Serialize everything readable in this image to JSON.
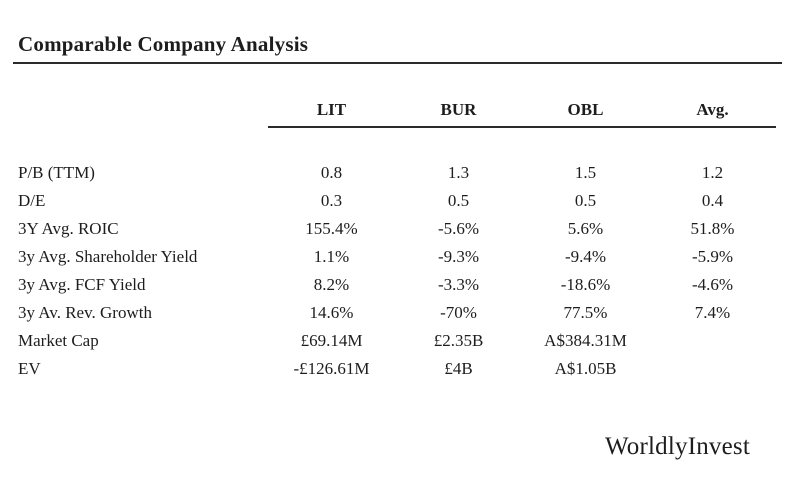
{
  "title": "Comparable Company Analysis",
  "watermark": "WorldlyInvest",
  "colors": {
    "text": "#1d1d1d",
    "rule": "#2a2a2a",
    "background": "#ffffff"
  },
  "chart_data": {
    "type": "table",
    "title": "Comparable Company Analysis",
    "columns": [
      "LIT",
      "BUR",
      "OBL",
      "Avg."
    ],
    "rows": [
      {
        "label": "P/B (TTM)",
        "values": [
          "0.8",
          "1.3",
          "1.5",
          "1.2"
        ]
      },
      {
        "label": "D/E",
        "values": [
          "0.3",
          "0.5",
          "0.5",
          "0.4"
        ]
      },
      {
        "label": "3Y Avg. ROIC",
        "values": [
          "155.4%",
          "-5.6%",
          "5.6%",
          "51.8%"
        ]
      },
      {
        "label": "3y Avg. Shareholder Yield",
        "values": [
          "1.1%",
          "-9.3%",
          "-9.4%",
          "-5.9%"
        ]
      },
      {
        "label": "3y Avg. FCF Yield",
        "values": [
          "8.2%",
          "-3.3%",
          "-18.6%",
          "-4.6%"
        ]
      },
      {
        "label": "3y Av. Rev. Growth",
        "values": [
          "14.6%",
          "-70%",
          "77.5%",
          "7.4%"
        ]
      },
      {
        "label": "Market Cap",
        "values": [
          "£69.14M",
          "£2.35B",
          "A$384.31M",
          ""
        ]
      },
      {
        "label": "EV",
        "values": [
          "-£126.61M",
          "£4B",
          "A$1.05B",
          ""
        ]
      }
    ],
    "legend_position": "none",
    "grid": false
  }
}
